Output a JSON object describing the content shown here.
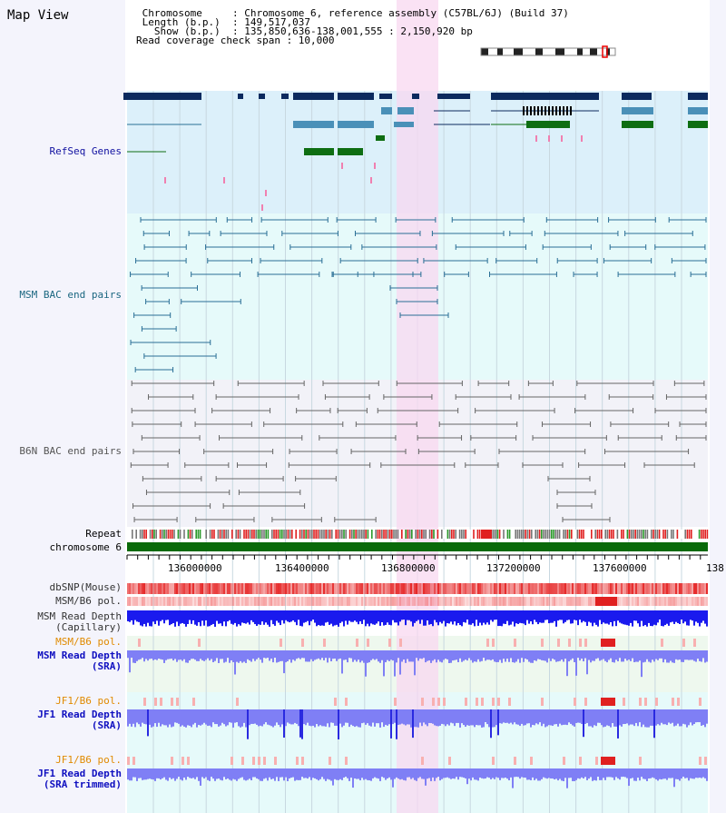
{
  "header": {
    "title": "Map View",
    "info_lines": [
      " Chromosome     : Chromosome 6, reference assembly (C57BL/6J) (Build 37)",
      " Length (b.p.)  : 149,517,037",
      "   Show (b.p.)  : 135,850,636-138,001,555 : 2,150,920 bp",
      "Read coverage check span : 10,000"
    ]
  },
  "tracks": {
    "refseq": "RefSeq Genes",
    "msm_bac": "MSM BAC end pairs",
    "b6n_bac": "B6N BAC end pairs",
    "repeat": "Repeat",
    "chromosome": "chromosome 6",
    "dbsnp": "dbSNP(Mouse)",
    "msm_b6_pol": "MSM/B6 pol.",
    "msm_depth_cap_1": "MSM Read Depth",
    "msm_depth_cap_2": "(Capillary)",
    "msm_b6_pol_2": "MSM/B6 pol.",
    "msm_depth_sra_1": "MSM Read Depth",
    "msm_depth_sra_2": "(SRA)",
    "jf1_b6_pol": "JF1/B6 pol.",
    "jf1_depth_sra_1": "JF1 Read Depth",
    "jf1_depth_sra_2": "(SRA)",
    "jf1_b6_pol_2": "JF1/B6 pol.",
    "jf1_depth_trim_1": "JF1 Read Depth",
    "jf1_depth_trim_2": "(SRA trimmed)"
  },
  "axis": {
    "ticks": [
      "136000000",
      "136400000",
      "136800000",
      "137200000",
      "137600000",
      "138"
    ]
  },
  "colors": {
    "refseq_bg": "#dcf0fa",
    "msm_bg": "#e6fafa",
    "b6n_bg": "#f2f2f8",
    "highlight": "#f8d8f0",
    "gene_dark": "#0b2a5e",
    "gene_mid": "#4a90b8",
    "gene_green": "#0e6e12",
    "bac_blue": "#2a6f96",
    "bac_gray": "#666666",
    "chrom_green": "#0a6a0a",
    "depth_blue": "#1a1aee",
    "depth_light": "#7f7ff5"
  }
}
